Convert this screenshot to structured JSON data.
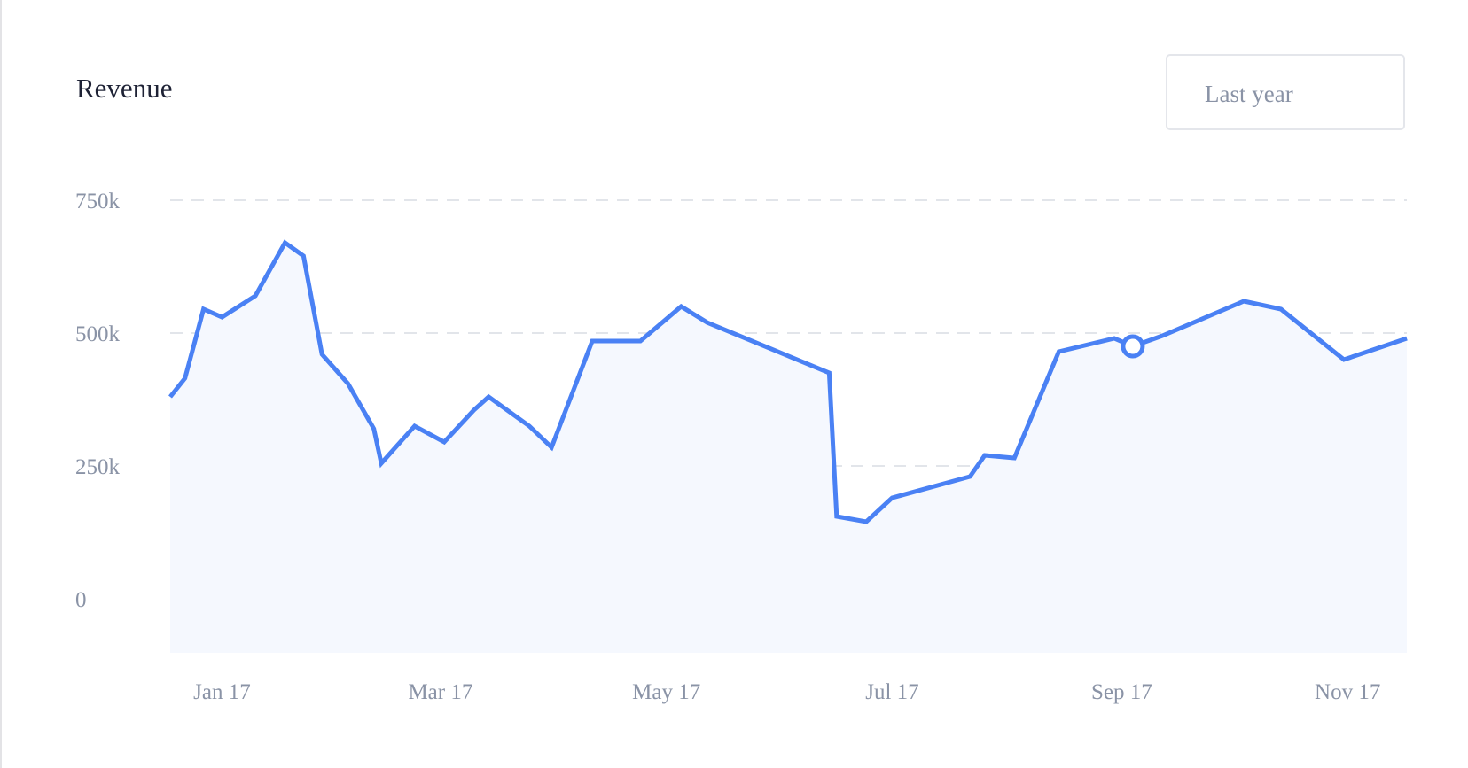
{
  "card": {
    "title": "Revenue",
    "range_select": {
      "value": "Last year"
    }
  },
  "colors": {
    "line": "#4a81f4",
    "area": "#f5f8fe",
    "grid": "#e2e5ea",
    "tick_text": "#8a93a6",
    "title_text": "#1e2235"
  },
  "chart_data": {
    "type": "area",
    "title": "Revenue",
    "xlabel": "",
    "ylabel": "",
    "ylim": [
      -100000,
      750000
    ],
    "y_ticks": [
      {
        "value": 750000,
        "label": "750k"
      },
      {
        "value": 500000,
        "label": "500k"
      },
      {
        "value": 250000,
        "label": "250k"
      },
      {
        "value": 0,
        "label": "0"
      }
    ],
    "x_range": [
      "2017-01-01",
      "2017-12-01"
    ],
    "x_ticks": [
      {
        "date": "2017-01-15",
        "label": "Jan 17"
      },
      {
        "date": "2017-03-15",
        "label": "Mar 17"
      },
      {
        "date": "2017-05-15",
        "label": "May 17"
      },
      {
        "date": "2017-07-15",
        "label": "Jul 17"
      },
      {
        "date": "2017-09-15",
        "label": "Sep 17"
      },
      {
        "date": "2017-11-15",
        "label": "Nov 17"
      }
    ],
    "grid": true,
    "legend": "none",
    "series": [
      {
        "x": [
          "2017-01-01",
          "2017-01-05",
          "2017-01-10",
          "2017-01-15",
          "2017-01-24",
          "2017-02-01",
          "2017-02-06",
          "2017-02-11",
          "2017-02-18",
          "2017-02-25",
          "2017-02-27",
          "2017-03-08",
          "2017-03-16",
          "2017-03-24",
          "2017-03-28",
          "2017-04-08",
          "2017-04-14",
          "2017-04-25",
          "2017-05-08",
          "2017-05-19",
          "2017-05-26",
          "2017-06-28",
          "2017-06-30",
          "2017-07-08",
          "2017-07-15",
          "2017-08-05",
          "2017-08-09",
          "2017-08-17",
          "2017-08-29",
          "2017-09-13",
          "2017-09-18",
          "2017-09-26",
          "2017-10-18",
          "2017-10-28",
          "2017-11-14",
          "2017-12-01"
        ],
        "y": [
          380000,
          415000,
          545000,
          530000,
          570000,
          670000,
          645000,
          460000,
          405000,
          320000,
          255000,
          325000,
          295000,
          355000,
          380000,
          325000,
          285000,
          485000,
          485000,
          550000,
          520000,
          425000,
          155000,
          145000,
          190000,
          230000,
          270000,
          265000,
          465000,
          490000,
          475000,
          495000,
          560000,
          545000,
          450000,
          490000
        ]
      }
    ],
    "highlight": {
      "x": "2017-09-18",
      "y": 475000
    }
  }
}
